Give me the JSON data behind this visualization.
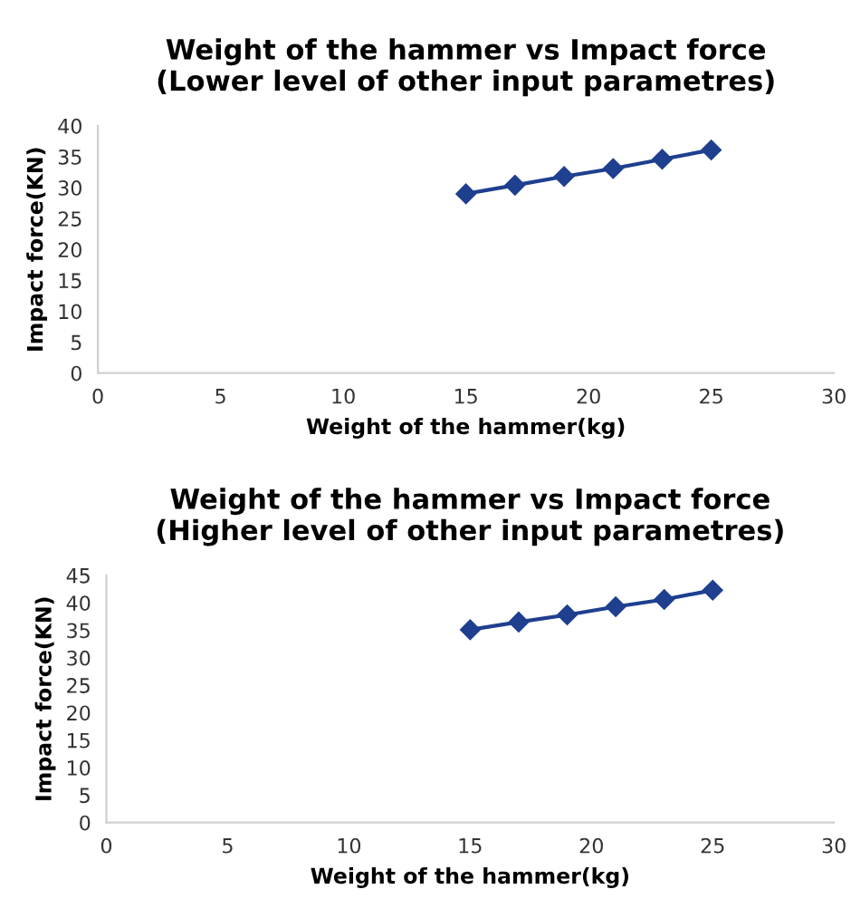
{
  "chart_data": [
    {
      "type": "line",
      "title": "Weight of the hammer vs Impact force\n(Lower level of other input parametres)",
      "xlabel": "Weight of the hammer(kg)",
      "ylabel": "Impact force(KN)",
      "x": [
        15,
        17,
        19,
        21,
        23,
        25
      ],
      "series": [
        {
          "color": "#1f3f8f",
          "values": [
            29.0,
            30.4,
            31.8,
            33.1,
            34.6,
            36.1
          ]
        }
      ],
      "xlim": [
        0,
        30
      ],
      "xticks": [
        0,
        5,
        10,
        15,
        20,
        25,
        30
      ],
      "ylim": [
        0,
        40
      ],
      "yticks": [
        0,
        5,
        10,
        15,
        20,
        25,
        30,
        35,
        40
      ],
      "grid": false,
      "legend": false,
      "marker": "diamond",
      "line_style": "solid"
    },
    {
      "type": "line",
      "title": "Weight of the hammer vs Impact force\n(Higher level of other input parametres)",
      "xlabel": "Weight of the hammer(kg)",
      "ylabel": "Impact force(KN)",
      "x": [
        15,
        17,
        19,
        21,
        23,
        25
      ],
      "series": [
        {
          "color": "#1f3f8f",
          "values": [
            35.1,
            36.5,
            37.8,
            39.3,
            40.6,
            42.3
          ]
        }
      ],
      "xlim": [
        0,
        30
      ],
      "xticks": [
        0,
        5,
        10,
        15,
        20,
        25,
        30
      ],
      "ylim": [
        0,
        45
      ],
      "yticks": [
        0,
        5,
        10,
        15,
        20,
        25,
        30,
        35,
        40,
        45
      ],
      "grid": false,
      "legend": false,
      "marker": "diamond",
      "line_style": "solid"
    }
  ]
}
